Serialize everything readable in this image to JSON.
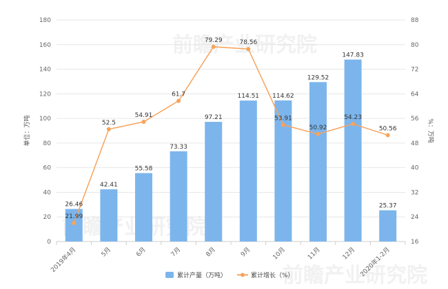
{
  "chart_data": {
    "type": "bar+line",
    "categories": [
      "2019年4月",
      "5月",
      "6月",
      "7月",
      "8月",
      "9月",
      "10月",
      "11月",
      "12月",
      "2020年1-2月"
    ],
    "series": [
      {
        "name": "累计产量（万吨）",
        "type": "bar",
        "axis": "left",
        "color": "#7cb5ec",
        "values": [
          26.46,
          42.41,
          55.58,
          73.33,
          97.21,
          114.51,
          114.62,
          129.52,
          147.83,
          25.37
        ],
        "labels": [
          "26.46",
          "42.41",
          "55.58",
          "73.33",
          "97.21",
          "114.51",
          "114.62",
          "129.52",
          "147.83",
          "25.37"
        ]
      },
      {
        "name": "累计增长（%）",
        "type": "line",
        "axis": "right",
        "color": "#f7a35c",
        "values": [
          21.99,
          52.5,
          54.91,
          61.7,
          79.29,
          78.56,
          53.91,
          50.92,
          54.23,
          50.56
        ],
        "labels": [
          "21.99",
          "52.5",
          "54.91",
          "61.7",
          "79.29",
          "78.56",
          "53.91",
          "50.92",
          "54.23",
          "50.56"
        ]
      }
    ],
    "y_left": {
      "label": "单位：万吨",
      "min": 0,
      "max": 180,
      "ticks": [
        "0",
        "20",
        "40",
        "60",
        "80",
        "100",
        "120",
        "140",
        "160",
        "180"
      ]
    },
    "y_right": {
      "label": "%：万吨",
      "min": 16,
      "max": 88,
      "ticks": [
        "16",
        "24",
        "32",
        "40",
        "48",
        "56",
        "64",
        "72",
        "80",
        "88"
      ]
    },
    "legend_position": "bottom-center",
    "grid": true
  }
}
